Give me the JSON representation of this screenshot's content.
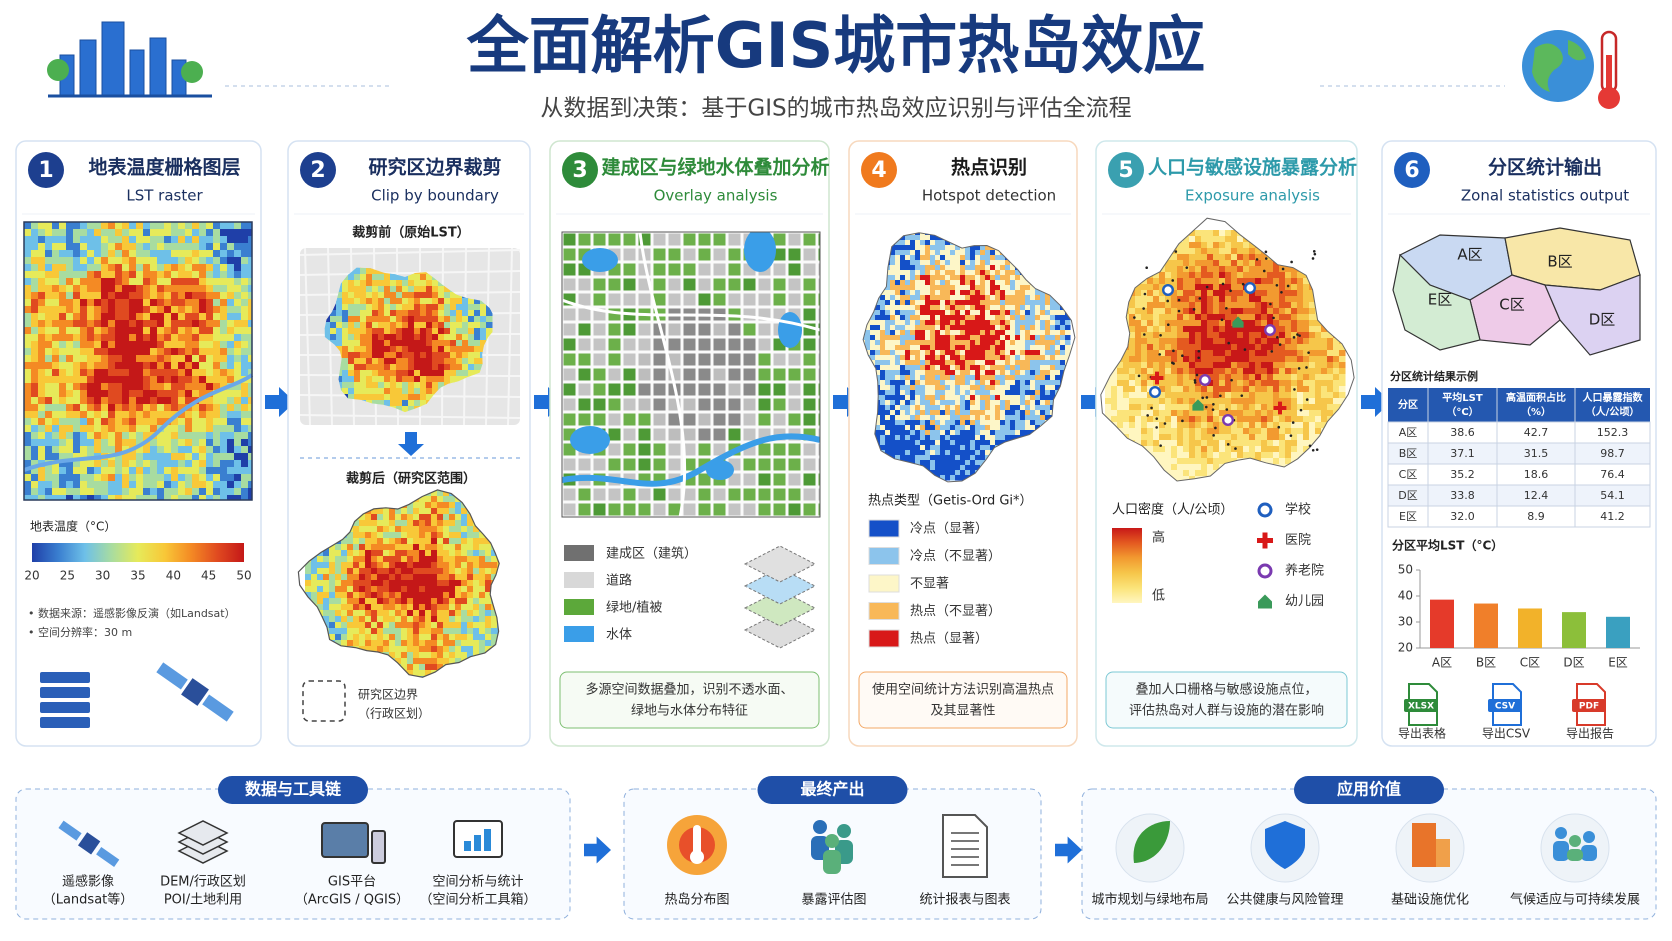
{
  "header": {
    "title": "全面解析GIS城市热岛效应",
    "subtitle": "从数据到决策：基于GIS的城市热岛效应识别与评估全流程"
  },
  "steps": [
    {
      "number": "1",
      "title": "地表温度栅格图层",
      "subtitle": "LST raster",
      "legend_title": "地表温度（°C）",
      "legend_ticks": [
        20,
        25,
        30,
        35,
        40,
        45,
        50
      ],
      "notes": [
        "• 数据来源：遥感影像反演（如Landsat）",
        "• 空间分辨率：30 m"
      ]
    },
    {
      "number": "2",
      "title": "研究区边界裁剪",
      "subtitle": "Clip by boundary",
      "before": "裁剪前（原始LST）",
      "after": "裁剪后（研究区范围）",
      "boundary": [
        "研究区边界",
        "（行政区划）"
      ]
    },
    {
      "number": "3",
      "title": "建成区与绿地水体叠加分析",
      "subtitle": "Overlay analysis",
      "legend": [
        "建成区（建筑）",
        "道路",
        "绿地/植被",
        "水体"
      ],
      "description": [
        "多源空间数据叠加，识别不透水面、",
        "绿地与水体分布特征"
      ]
    },
    {
      "number": "4",
      "title": "热点识别",
      "subtitle": "Hotspot detection",
      "legend_title": "热点类型（Getis-Ord Gi*）",
      "legend": [
        "冷点（显著）",
        "冷点（不显著）",
        "不显著",
        "热点（不显著）",
        "热点（显著）"
      ],
      "description": [
        "使用空间统计方法识别高温热点",
        "及其显著性"
      ]
    },
    {
      "number": "5",
      "title": "人口与敏感设施暴露分析",
      "subtitle": "Exposure analysis",
      "legend_title": "人口密度（人/公顷）",
      "high": "高",
      "low": "低",
      "facilities": [
        "学校",
        "医院",
        "养老院",
        "幼儿园"
      ],
      "description": [
        "叠加人口栅格与敏感设施点位，",
        "评估热岛对人群与设施的潜在影响"
      ]
    },
    {
      "number": "6",
      "title": "分区统计输出",
      "subtitle": "Zonal statistics output",
      "zones": [
        "A区",
        "B区",
        "C区",
        "D区",
        "E区"
      ],
      "table": {
        "title": "分区统计结果示例",
        "header": [
          [
            "分区"
          ],
          [
            "平均LST",
            "（°C）"
          ],
          [
            "高温面积占比",
            "（%）"
          ],
          [
            "人口暴露指数",
            "（人/公顷）"
          ]
        ],
        "rows": [
          [
            "A区",
            "38.6",
            "42.7",
            "152.3"
          ],
          [
            "B区",
            "37.1",
            "31.5",
            "98.7"
          ],
          [
            "C区",
            "35.2",
            "18.6",
            "76.4"
          ],
          [
            "D区",
            "33.8",
            "12.4",
            "54.1"
          ],
          [
            "E区",
            "32.0",
            "8.9",
            "41.2"
          ]
        ]
      },
      "exports": [
        {
          "icon": "XLSX",
          "label": "导出表格"
        },
        {
          "icon": "CSV",
          "label": "导出CSV"
        },
        {
          "icon": "PDF",
          "label": "导出报告"
        }
      ]
    }
  ],
  "chart_data": {
    "type": "bar",
    "title": "分区平均LST（°C）",
    "categories": [
      "A区",
      "B区",
      "C区",
      "D区",
      "E区"
    ],
    "values": [
      38.6,
      37.1,
      35.2,
      33.8,
      32.0
    ],
    "colors": [
      "#e53a2a",
      "#f07f2a",
      "#f2b22a",
      "#8cbf3a",
      "#3aa0c0"
    ],
    "ylim": [
      20,
      50
    ],
    "yticks": [
      20,
      30,
      40,
      50
    ]
  },
  "bottom": [
    {
      "title": "数据与工具链",
      "items": [
        [
          "遥感影像",
          "（Landsat等）"
        ],
        [
          "DEM/行政区划",
          "POI/土地利用"
        ],
        [
          "GIS平台",
          "（ArcGIS / QGIS）"
        ],
        [
          "空间分析与统计",
          "（空间分析工具箱）"
        ]
      ]
    },
    {
      "title": "最终产出",
      "items": [
        [
          "热岛分布图"
        ],
        [
          "暴露评估图"
        ],
        [
          "统计报表与图表"
        ]
      ]
    },
    {
      "title": "应用价值",
      "items": [
        [
          "城市规划与绿地布局"
        ],
        [
          "公共健康与风险管理"
        ],
        [
          "基础设施优化"
        ],
        [
          "气候适应与可持续发展"
        ]
      ]
    }
  ]
}
